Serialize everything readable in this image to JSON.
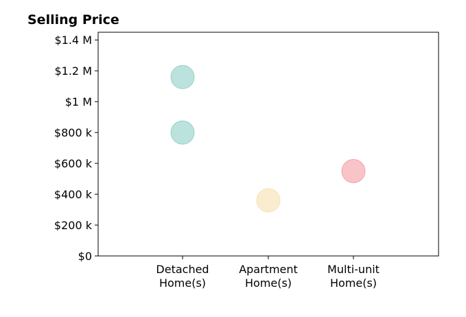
{
  "chart_data": {
    "type": "scatter",
    "title": "Selling Price",
    "xlabel": "",
    "ylabel": "",
    "categories": [
      [
        "Detached",
        "Home(s)"
      ],
      [
        "Apartment",
        "Home(s)"
      ],
      [
        "Multi-unit",
        "Home(s)"
      ]
    ],
    "points": [
      {
        "category_index": 0,
        "value": 1160000,
        "color": "#8ecfc6"
      },
      {
        "category_index": 0,
        "value": 800000,
        "color": "#8ecfc6"
      },
      {
        "category_index": 1,
        "value": 360000,
        "color": "#f6dfae"
      },
      {
        "category_index": 2,
        "value": 550000,
        "color": "#f39ca3"
      }
    ],
    "ylim": [
      0,
      1450000
    ],
    "yticks": [
      {
        "value": 0,
        "label": "$0"
      },
      {
        "value": 200000,
        "label": "$200 k"
      },
      {
        "value": 400000,
        "label": "$400 k"
      },
      {
        "value": 600000,
        "label": "$600 k"
      },
      {
        "value": 800000,
        "label": "$800 k"
      },
      {
        "value": 1000000,
        "label": "$1 M"
      },
      {
        "value": 1200000,
        "label": "$1.2 M"
      },
      {
        "value": 1400000,
        "label": "$1.4 M"
      }
    ],
    "grid": false,
    "legend": "none"
  }
}
